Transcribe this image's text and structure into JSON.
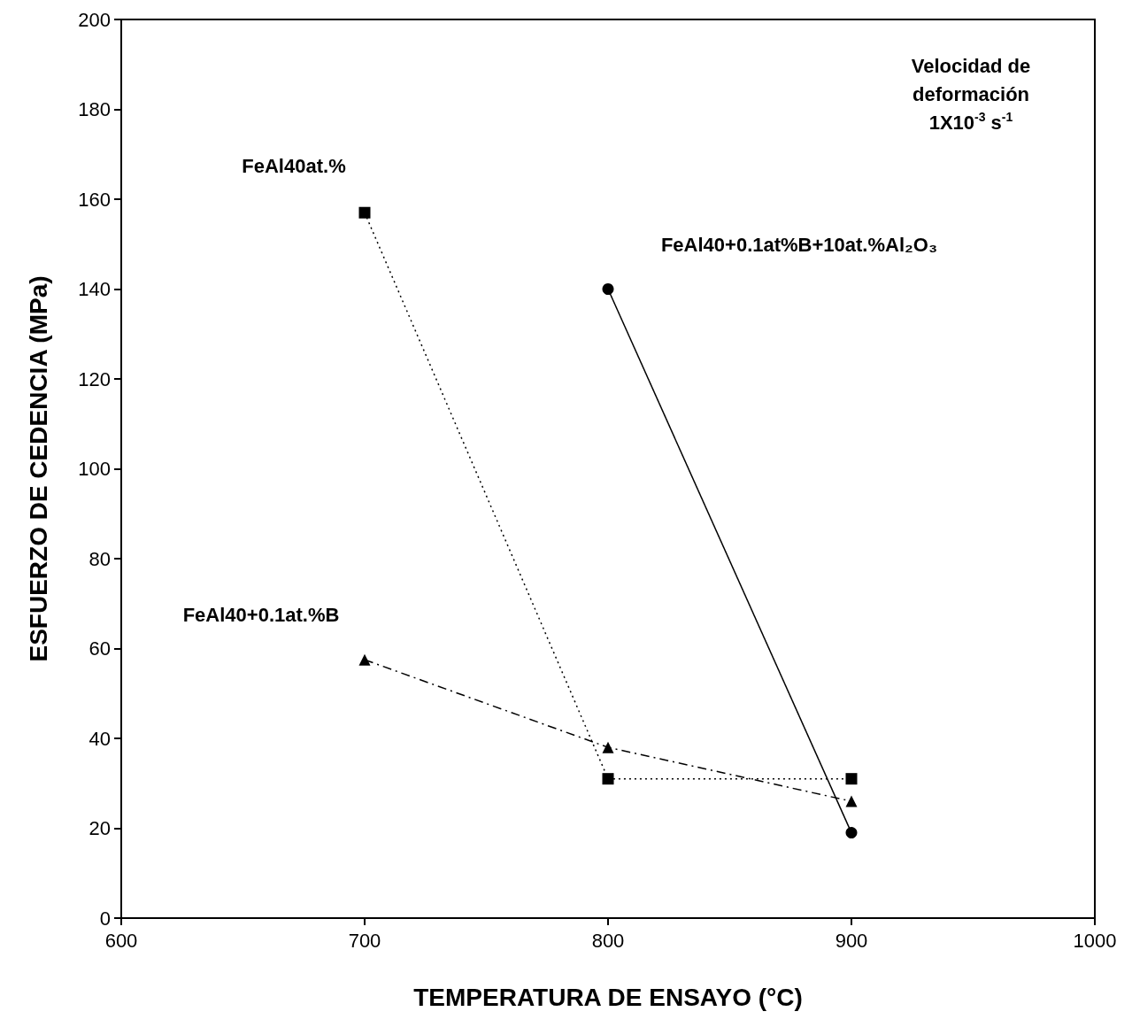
{
  "chart_data": {
    "type": "line",
    "xlabel": "TEMPERATURA DE ENSAYO (°C)",
    "ylabel": "ESFUERZO DE CEDENCIA (MPa)",
    "xlim": [
      600,
      1000
    ],
    "xticks": [
      600,
      700,
      800,
      900,
      1000
    ],
    "ylim": [
      0,
      200
    ],
    "yticks": [
      0,
      20,
      40,
      60,
      80,
      100,
      120,
      140,
      160,
      180,
      200
    ],
    "grid": false,
    "legend": false,
    "annotations": [
      "Velocidad de\ndeformación\n1X10$^{-3}$ s$^{-1}$"
    ],
    "series": [
      {
        "name": "FeAl40at.%",
        "color": "#000000",
        "marker": "square",
        "line_style": "dotted",
        "x": [
          700,
          800,
          900
        ],
        "values": [
          157,
          31,
          31
        ]
      },
      {
        "name": "FeAl40+0.1at%B+10at.%Al₂O₃",
        "color": "#000000",
        "marker": "circle",
        "line_style": "solid",
        "x": [
          800,
          900
        ],
        "values": [
          140,
          19
        ]
      },
      {
        "name": "FeAl40+0.1at.%B",
        "color": "#000000",
        "marker": "triangle",
        "line_style": "dashed",
        "x": [
          700,
          800,
          900
        ],
        "values": [
          57.5,
          38,
          26
        ]
      }
    ]
  }
}
